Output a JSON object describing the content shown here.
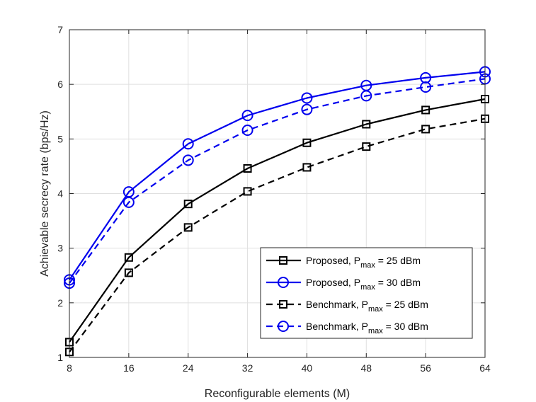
{
  "chart_data": {
    "type": "line",
    "title": "",
    "xlabel": "Reconfigurable elements (M)",
    "ylabel": "Achievable secrecy rate (bps/Hz)",
    "x": [
      8,
      16,
      24,
      32,
      40,
      48,
      56,
      64
    ],
    "xlim": [
      8,
      64
    ],
    "ylim": [
      1,
      7
    ],
    "xticks": [
      "8",
      "16",
      "24",
      "32",
      "40",
      "48",
      "56",
      "64"
    ],
    "yticks": [
      "1",
      "2",
      "3",
      "4",
      "5",
      "6",
      "7"
    ],
    "grid": true,
    "legend_position": "bottom-right",
    "series": [
      {
        "name": "Proposed, P",
        "sub": "max",
        "suffix": " = 25 dBm",
        "color": "#000000",
        "dash": "solid",
        "marker": "square",
        "values": [
          1.28,
          2.83,
          3.81,
          4.46,
          4.93,
          5.27,
          5.53,
          5.73
        ]
      },
      {
        "name": "Proposed, P",
        "sub": "max",
        "suffix": " = 30 dBm",
        "color": "#0000ee",
        "dash": "solid",
        "marker": "circle",
        "values": [
          2.42,
          4.03,
          4.91,
          5.43,
          5.75,
          5.98,
          6.12,
          6.23
        ]
      },
      {
        "name": "Benchmark, P",
        "sub": "max",
        "suffix": " = 25 dBm",
        "color": "#000000",
        "dash": "dashed",
        "marker": "square",
        "values": [
          1.1,
          2.55,
          3.38,
          4.04,
          4.48,
          4.86,
          5.18,
          5.37
        ]
      },
      {
        "name": "Benchmark, P",
        "sub": "max",
        "suffix": " = 30 dBm",
        "color": "#0000ee",
        "dash": "dashed",
        "marker": "circle",
        "values": [
          2.36,
          3.84,
          4.61,
          5.16,
          5.54,
          5.79,
          5.95,
          6.1
        ]
      }
    ]
  }
}
